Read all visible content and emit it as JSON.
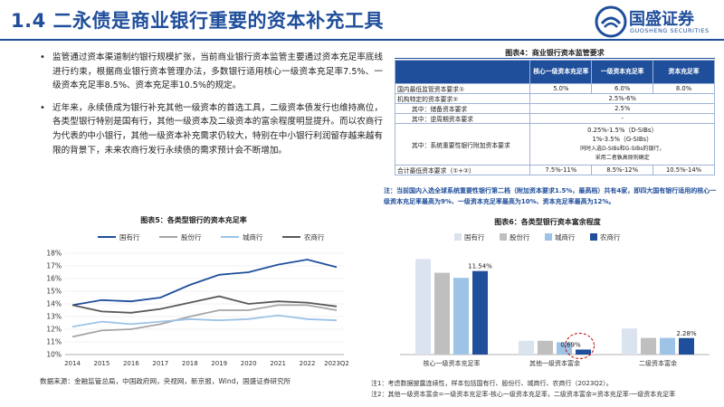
{
  "header": {
    "title": "1.4 二永债是商业银行重要的资本补充工具",
    "logo_cn": "国盛证券",
    "logo_en": "GUOSHENG SECURITIES"
  },
  "bullets": [
    "监管通过资本渠道制约银行规模扩张，当前商业银行资本监管主要通过资本充足率底线进行约束，根据商业银行资本管理办法，多数银行适用核心一级资本充足率7.5%、一级资本充足率8.5%、资本充足率10.5%的规定。",
    "近年来，永续债成为银行补充其他一级资本的首选工具，二级资本债发行也维持高位，各类型银行特别是国有行，其他一级资本及二级资本的富余程度明显提升。而以农商行为代表的中小银行，其他一级资本补充需求仍较大，特别在中小银行利润留存越来越有限的背景下，未来农商行发行永续债的需求预计会不断增加。"
  ],
  "table": {
    "title": "图表4：商业银行资本监管要求",
    "headers": [
      "",
      "核心一级资本充足率",
      "一级资本充足率",
      "资本充足率"
    ],
    "rows": [
      {
        "label": "国内最低监管资本要求①",
        "c1": "5.0%",
        "c2": "6.0%",
        "c3": "8.0%"
      },
      {
        "label": "机构特定的资本要求②",
        "span": "2.5%-6%"
      },
      {
        "label": "其中：储备资本要求",
        "span": "2.5%"
      },
      {
        "label": "其中：逆周期资本要求",
        "span": "-"
      },
      {
        "label": "其中：系统重要性银行附加资本要求",
        "span_lines": [
          "0.25%-1.5%（D-SIBs）",
          "1%-3.5%（G-SIBs）",
          "同时入选D-SIBs和G-SIBs的银行，",
          "采用二者孰高原则确定"
        ]
      },
      {
        "label": "合计最低资本要求（①+②）",
        "c1": "7.5%-11%",
        "c2": "8.5%-12%",
        "c3": "10.5%-14%"
      }
    ],
    "note": "注：当前国内入选全球系统重要性银行第二档（附加资本要求1.5%，最高档）共有4家，即四大国有银行适用的核心一级资本充足率最高为9%、一级资本充足率最高为10%、资本充足率最高为12%。"
  },
  "chart5": {
    "title": "图表5：各类型银行的资本充足率",
    "source": "数据来源：金融监管总局，中国政府网，央视网，新京报，Wind，国盛证券研究所"
  },
  "chart6": {
    "title": "图表6：各类型银行资本富余程度"
  },
  "footnote": "注1：考虑数据披露连续性，样本包括国有行、股份行、城商行、农商行（2023Q2）。\n注2：其他一级资本富余=一级资本充足率-核心一级资本充足率，二级资本富余=资本充足率-一级资本充足率",
  "chart_data": [
    {
      "type": "line",
      "title": "图表5：各类型银行的资本充足率",
      "categories": [
        "2014",
        "2015",
        "2016",
        "2017",
        "2018",
        "2019",
        "2020",
        "2021",
        "2022",
        "2023Q2"
      ],
      "ylim": [
        10,
        18
      ],
      "yticks": [
        "10%",
        "11%",
        "12%",
        "13%",
        "14%",
        "15%",
        "16%",
        "17%",
        "18%"
      ],
      "legend_position": "top",
      "series": [
        {
          "name": "国有行",
          "color": "#1f4e9b",
          "values": [
            13.9,
            14.3,
            14.2,
            14.5,
            15.5,
            16.3,
            16.5,
            17.1,
            17.5,
            16.9
          ]
        },
        {
          "name": "股份行",
          "color": "#a5a5a5",
          "values": [
            11.4,
            11.9,
            12.0,
            12.4,
            13.0,
            13.5,
            13.5,
            13.9,
            13.9,
            13.5
          ]
        },
        {
          "name": "城商行",
          "color": "#9dc3e6",
          "values": [
            12.2,
            12.6,
            12.4,
            12.6,
            12.8,
            12.7,
            12.8,
            13.1,
            12.8,
            12.7
          ]
        },
        {
          "name": "农商行",
          "color": "#595959",
          "values": [
            13.9,
            13.4,
            13.3,
            13.6,
            14.1,
            14.6,
            14.0,
            14.2,
            14.1,
            13.8
          ]
        }
      ]
    },
    {
      "type": "bar",
      "title": "图表6：各类型银行资本富余程度",
      "categories": [
        "核心一级资本充足率",
        "其他一级资本富余",
        "二级资本富余"
      ],
      "legend_position": "top",
      "series": [
        {
          "name": "国有行",
          "color": "#dbe3ef",
          "values": [
            13.2,
            1.9,
            3.6
          ]
        },
        {
          "name": "股份行",
          "color": "#bfbfbf",
          "values": [
            11.3,
            1.9,
            2.3
          ]
        },
        {
          "name": "城商行",
          "color": "#9dc3e6",
          "values": [
            10.6,
            1.7,
            2.3
          ]
        },
        {
          "name": "农商行",
          "color": "#1f4e9b",
          "values": [
            11.54,
            0.69,
            2.28
          ]
        }
      ],
      "labels": [
        "11.54%",
        "0.69%",
        "2.28%"
      ],
      "ylim": [
        0,
        14
      ]
    }
  ]
}
